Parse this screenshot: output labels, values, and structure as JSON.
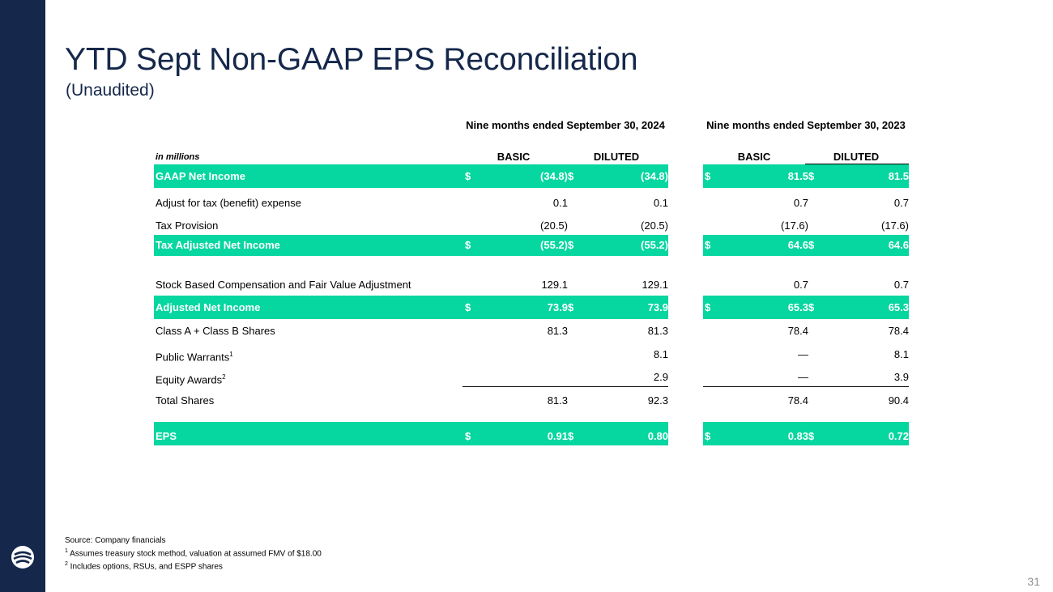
{
  "slide": {
    "title": "YTD Sept Non-GAAP EPS Reconciliation",
    "subtitle": "(Unaudited)",
    "page_number": "31",
    "accent_color": "#06d6a0",
    "navy_color": "#15284b"
  },
  "table": {
    "units_label": "in millions",
    "periods": [
      "Nine months ended September 30, 2024",
      "Nine months ended September 30, 2023"
    ],
    "columns": [
      "BASIC",
      "DILUTED",
      "BASIC",
      "DILUTED"
    ],
    "rows": [
      {
        "label": "GAAP Net Income",
        "currency": true,
        "values": [
          "(34.8)",
          "(34.8)",
          "81.5",
          "81.5"
        ]
      },
      {
        "label": "Adjust for tax (benefit) expense",
        "values": [
          "0.1",
          "0.1",
          "0.7",
          "0.7"
        ]
      },
      {
        "label": "Tax Provision",
        "values": [
          "(20.5)",
          "(20.5)",
          "(17.6)",
          "(17.6)"
        ]
      },
      {
        "label": "Tax Adjusted Net Income",
        "currency": true,
        "values": [
          "(55.2)",
          "(55.2)",
          "64.6",
          "64.6"
        ]
      },
      {
        "label": "Stock Based Compensation and Fair Value Adjustment",
        "values": [
          "129.1",
          "129.1",
          "0.7",
          "0.7"
        ]
      },
      {
        "label": "Adjusted Net Income",
        "currency": true,
        "values": [
          "73.9",
          "73.9",
          "65.3",
          "65.3"
        ]
      },
      {
        "label": "Class A + Class B Shares",
        "values": [
          "81.3",
          "81.3",
          "78.4",
          "78.4"
        ]
      },
      {
        "label": "Public Warrants",
        "footnote": "1",
        "values": [
          "",
          "8.1",
          "—",
          "8.1"
        ]
      },
      {
        "label": "Equity Awards",
        "footnote": "2",
        "values": [
          "",
          "2.9",
          "—",
          "3.9"
        ]
      },
      {
        "label": "Total Shares",
        "values": [
          "81.3",
          "92.3",
          "78.4",
          "90.4"
        ]
      },
      {
        "label": "EPS",
        "currency": true,
        "values": [
          "0.91",
          "0.80",
          "0.83",
          "0.72"
        ]
      }
    ],
    "currency_symbol": "$"
  },
  "footnotes": {
    "source": "Source: Company financials",
    "note1_marker": "1",
    "note1": " Assumes treasury stock method, valuation at assumed FMV of $18.00",
    "note2_marker": "2",
    "note2": " Includes options, RSUs, and ESPP shares"
  }
}
